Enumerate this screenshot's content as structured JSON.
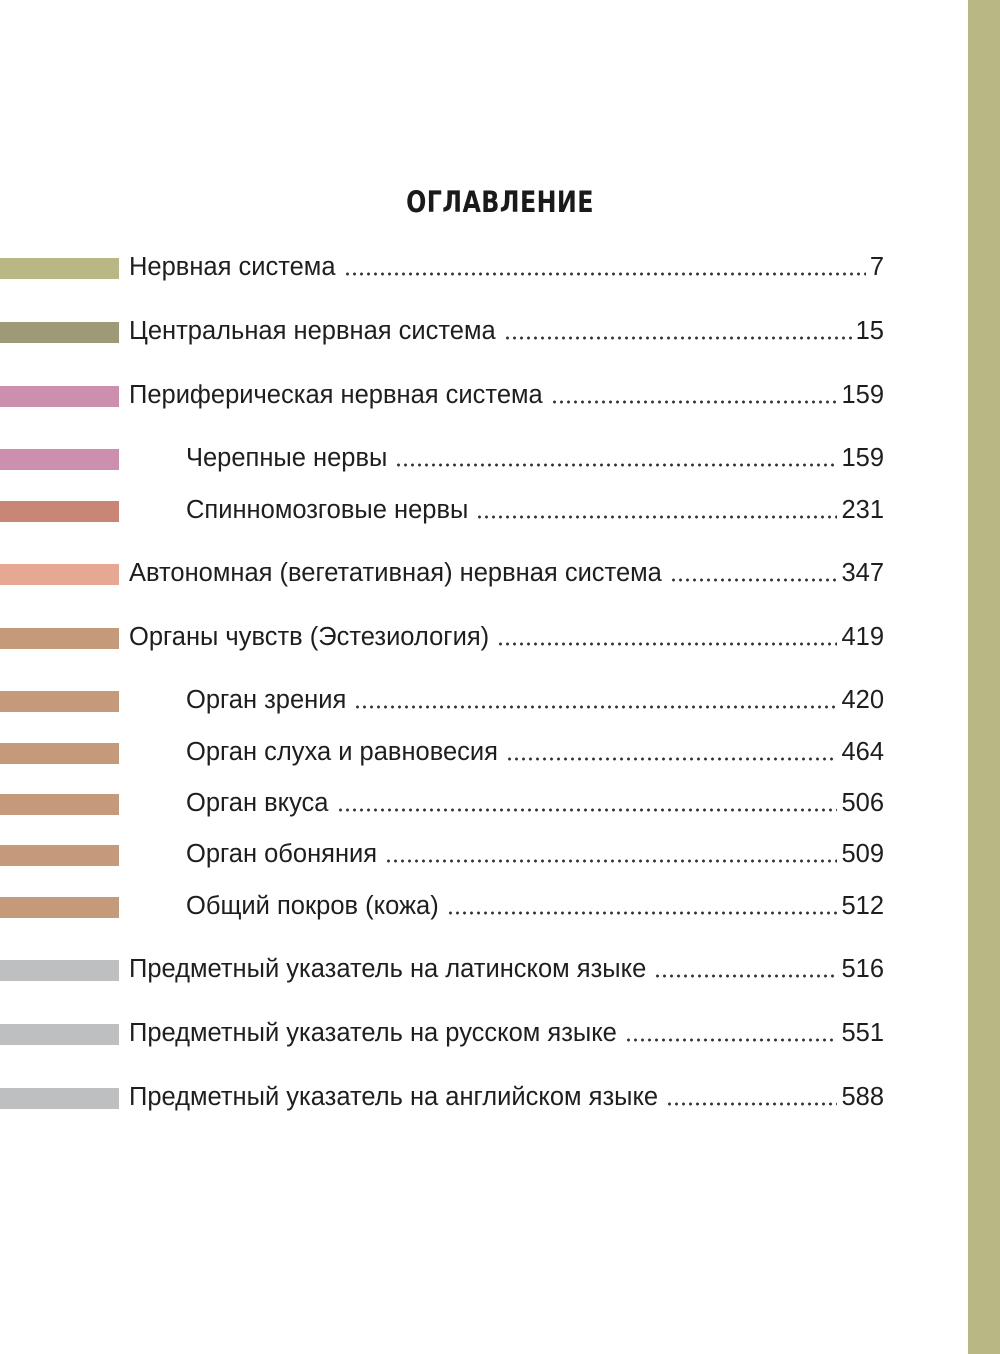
{
  "heading": "ОГЛАВЛЕНИЕ",
  "side_band_color": "#B9B783",
  "entries": [
    {
      "label": "Нервная система",
      "page": "7",
      "level": 1,
      "color": "#B9B783"
    },
    {
      "label": "Центральная нервная система",
      "page": "15",
      "level": 1,
      "color": "#9E9A77"
    },
    {
      "label": "Периферическая нервная система",
      "page": "159",
      "level": 1,
      "color": "#CC8FAE"
    },
    {
      "label": "Черепные нервы",
      "page": "159",
      "level": 2,
      "color": "#CC8FAE"
    },
    {
      "label": "Спинномозговые нервы",
      "page": "231",
      "level": 2,
      "color": "#C98677"
    },
    {
      "label": "Автономная (вегетативная) нервная система",
      "page": "347",
      "level": 1,
      "color": "#E6A893"
    },
    {
      "label": "Органы чувств (Эстезиология)",
      "page": "419",
      "level": 1,
      "color": "#C49A7B"
    },
    {
      "label": "Орган зрения",
      "page": "420",
      "level": 2,
      "color": "#C49A7B"
    },
    {
      "label": "Орган слуха и равновесия",
      "page": "464",
      "level": 2,
      "color": "#C49A7B"
    },
    {
      "label": "Орган вкуса",
      "page": "506",
      "level": 2,
      "color": "#C49A7B"
    },
    {
      "label": "Орган обоняния",
      "page": "509",
      "level": 2,
      "color": "#C49A7B"
    },
    {
      "label": "Общий покров (кожа)",
      "page": "512",
      "level": 2,
      "color": "#C49A7B"
    },
    {
      "label": "Предметный указатель на латинском языке",
      "page": "516",
      "level": 1,
      "color": "#BEBFC1"
    },
    {
      "label": "Предметный указатель на русском языке",
      "page": "551",
      "level": 1,
      "color": "#BEBFC1"
    },
    {
      "label": "Предметный указатель на английском языке",
      "page": "588",
      "level": 1,
      "color": "#BEBFC1"
    }
  ]
}
